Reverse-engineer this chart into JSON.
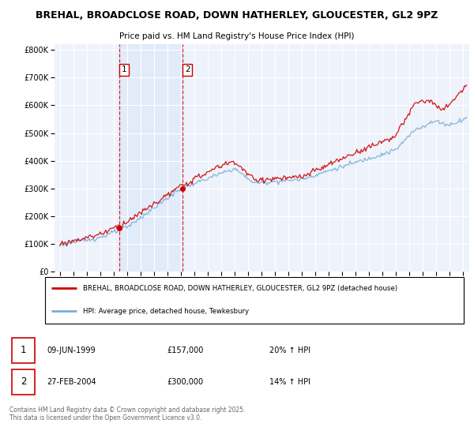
{
  "title_line1": "BREHAL, BROADCLOSE ROAD, DOWN HATHERLEY, GLOUCESTER, GL2 9PZ",
  "title_line2": "Price paid vs. HM Land Registry's House Price Index (HPI)",
  "background_color": "#ffffff",
  "plot_bg_color": "#eef2fb",
  "grid_color": "#ffffff",
  "red_color": "#cc0000",
  "blue_color": "#7aafd4",
  "transaction1_date": "09-JUN-1999",
  "transaction1_price": "£157,000",
  "transaction1_hpi": "20% ↑ HPI",
  "transaction1_year": 1999.44,
  "transaction2_date": "27-FEB-2004",
  "transaction2_price": "£300,000",
  "transaction2_hpi": "14% ↑ HPI",
  "transaction2_year": 2004.15,
  "legend_line1": "BREHAL, BROADCLOSE ROAD, DOWN HATHERLEY, GLOUCESTER, GL2 9PZ (detached house)",
  "legend_line2": "HPI: Average price, detached house, Tewkesbury",
  "footer": "Contains HM Land Registry data © Crown copyright and database right 2025.\nThis data is licensed under the Open Government Licence v3.0.",
  "ylim": [
    0,
    820000
  ],
  "yticks": [
    0,
    100000,
    200000,
    300000,
    400000,
    500000,
    600000,
    700000,
    800000
  ],
  "xlim_start": 1994.6,
  "xlim_end": 2025.5,
  "transaction1_price_val": 157000,
  "transaction2_price_val": 300000
}
